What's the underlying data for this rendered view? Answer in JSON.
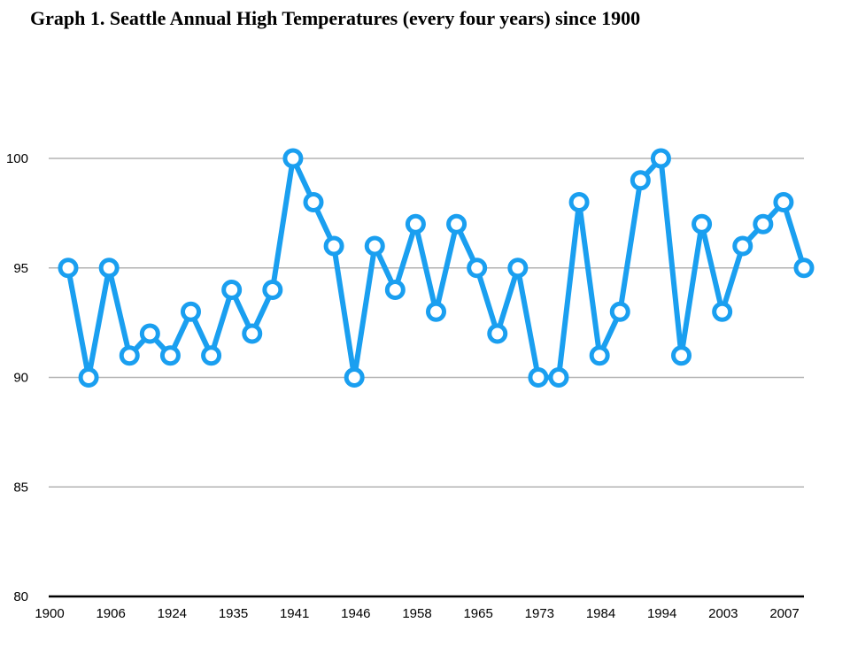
{
  "chart_data": {
    "type": "line",
    "title": "Graph 1.  Seattle Annual High Temperatures (every four years) since 1900",
    "xlabel": "",
    "ylabel": "",
    "ylim": [
      80,
      100
    ],
    "yticks": [
      "80",
      "85",
      "90",
      "95",
      "100"
    ],
    "xtick_labels": [
      "1900",
      "1906",
      "1924",
      "1935",
      "1941",
      "1946",
      "1958",
      "1965",
      "1973",
      "1984",
      "1994",
      "2003",
      "2007"
    ],
    "grid": "horizontal",
    "series": [
      {
        "color": "#1a9ff0",
        "values": [
          95,
          90,
          95,
          91,
          92,
          91,
          93,
          91,
          94,
          92,
          94,
          100,
          98,
          96,
          90,
          96,
          94,
          97,
          93,
          97,
          95,
          92,
          95,
          90,
          90,
          98,
          91,
          93,
          99,
          100,
          91,
          97,
          93,
          96,
          97,
          98,
          95
        ]
      }
    ]
  }
}
